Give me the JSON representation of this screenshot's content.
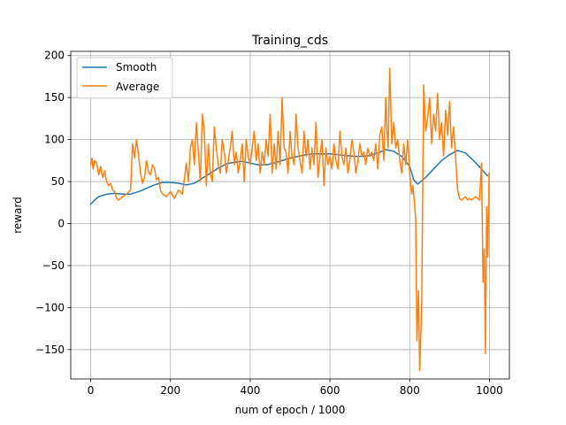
{
  "chart_data": {
    "type": "line",
    "title": "Training_cds",
    "xlabel": "num of epoch / 1000",
    "ylabel": "reward",
    "xlim": [
      -50,
      1050
    ],
    "ylim": [
      -185,
      205
    ],
    "xticks": [
      0,
      200,
      400,
      600,
      800,
      1000
    ],
    "yticks": [
      -150,
      -100,
      -50,
      0,
      50,
      100,
      150,
      200
    ],
    "xtick_labels": [
      "0",
      "200",
      "400",
      "600",
      "800",
      "1000"
    ],
    "ytick_labels": [
      "−150",
      "−100",
      "−50",
      "0",
      "50",
      "100",
      "150",
      "200"
    ],
    "grid": true,
    "legend": {
      "location": "upper left",
      "entries": [
        "Smooth",
        "Average"
      ]
    },
    "series": [
      {
        "name": "Smooth",
        "color": "#1f77b4",
        "x": [
          0,
          10,
          20,
          40,
          60,
          80,
          100,
          120,
          140,
          160,
          180,
          200,
          220,
          240,
          260,
          280,
          300,
          320,
          340,
          360,
          380,
          400,
          420,
          440,
          460,
          480,
          500,
          520,
          540,
          560,
          580,
          600,
          620,
          640,
          660,
          680,
          700,
          720,
          740,
          760,
          780,
          800,
          810,
          820,
          840,
          860,
          880,
          900,
          920,
          940,
          960,
          980,
          995
        ],
        "values": [
          23,
          28,
          32,
          35,
          36,
          35,
          35,
          38,
          42,
          46,
          49,
          49,
          48,
          46,
          48,
          54,
          60,
          66,
          71,
          73,
          74,
          72,
          70,
          70,
          72,
          75,
          78,
          80,
          82,
          83,
          83,
          83,
          82,
          81,
          80,
          80,
          81,
          84,
          88,
          86,
          80,
          68,
          52,
          47,
          55,
          65,
          75,
          82,
          87,
          84,
          75,
          65,
          57
        ]
      },
      {
        "name": "Average",
        "color": "#ff7f0e",
        "x": [
          0,
          3,
          6,
          10,
          15,
          20,
          25,
          30,
          35,
          40,
          45,
          50,
          55,
          60,
          65,
          70,
          80,
          90,
          100,
          105,
          110,
          115,
          120,
          125,
          130,
          135,
          140,
          145,
          150,
          155,
          160,
          165,
          170,
          175,
          180,
          190,
          200,
          210,
          220,
          230,
          240,
          245,
          250,
          255,
          260,
          265,
          270,
          275,
          280,
          285,
          290,
          295,
          300,
          305,
          310,
          315,
          320,
          325,
          330,
          335,
          340,
          345,
          350,
          355,
          360,
          365,
          370,
          375,
          380,
          385,
          390,
          395,
          400,
          405,
          410,
          415,
          420,
          425,
          430,
          435,
          440,
          445,
          450,
          455,
          460,
          465,
          470,
          475,
          480,
          485,
          490,
          495,
          500,
          505,
          510,
          515,
          520,
          525,
          530,
          535,
          540,
          545,
          550,
          555,
          560,
          565,
          570,
          575,
          580,
          585,
          590,
          595,
          600,
          605,
          610,
          615,
          620,
          625,
          630,
          635,
          640,
          645,
          650,
          655,
          660,
          665,
          670,
          675,
          680,
          685,
          690,
          695,
          700,
          705,
          710,
          715,
          720,
          725,
          730,
          735,
          740,
          743,
          746,
          750,
          755,
          760,
          765,
          770,
          775,
          780,
          785,
          790,
          795,
          800,
          805,
          808,
          812,
          815,
          818,
          822,
          825,
          830,
          835,
          840,
          845,
          850,
          855,
          860,
          865,
          870,
          875,
          880,
          885,
          890,
          895,
          900,
          905,
          910,
          915,
          920,
          925,
          930,
          935,
          940,
          945,
          950,
          955,
          960,
          965,
          970,
          975,
          980,
          984,
          987,
          990,
          993,
          996,
          999
        ],
        "values": [
          70,
          78,
          65,
          75,
          72,
          58,
          68,
          55,
          63,
          50,
          45,
          48,
          40,
          38,
          30,
          28,
          32,
          35,
          40,
          95,
          78,
          100,
          82,
          60,
          48,
          55,
          75,
          62,
          58,
          70,
          66,
          52,
          55,
          40,
          35,
          32,
          38,
          30,
          40,
          35,
          72,
          50,
          90,
          100,
          70,
          120,
          85,
          50,
          130,
          110,
          45,
          95,
          60,
          50,
          115,
          90,
          70,
          60,
          100,
          85,
          60,
          75,
          90,
          110,
          70,
          85,
          60,
          75,
          95,
          50,
          100,
          80,
          70,
          90,
          110,
          75,
          95,
          60,
          85,
          70,
          100,
          80,
          130,
          60,
          95,
          65,
          110,
          70,
          150,
          90,
          85,
          60,
          110,
          80,
          70,
          130,
          90,
          75,
          60,
          110,
          80,
          100,
          65,
          90,
          70,
          120,
          55,
          80,
          100,
          45,
          90,
          70,
          80,
          65,
          95,
          75,
          65,
          110,
          80,
          70,
          90,
          60,
          75,
          100,
          85,
          60,
          75,
          95,
          80,
          85,
          70,
          90,
          80,
          85,
          75,
          95,
          65,
          105,
          115,
          75,
          150,
          110,
          90,
          185,
          95,
          120,
          90,
          100,
          75,
          60,
          95,
          70,
          100,
          60,
          35,
          45,
          25,
          5,
          -140,
          -80,
          -175,
          -100,
          165,
          110,
          125,
          150,
          95,
          130,
          110,
          155,
          100,
          120,
          80,
          135,
          105,
          145,
          90,
          115,
          80,
          40,
          30,
          28,
          30,
          32,
          28,
          30,
          28,
          30,
          32,
          30,
          28,
          72,
          -70,
          -30,
          -155,
          20,
          -40,
          60
        ]
      }
    ]
  }
}
